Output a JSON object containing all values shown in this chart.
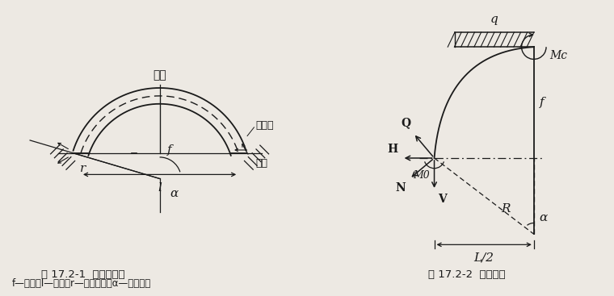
{
  "bg_color": "#ede9e3",
  "title1": "图 17.2-1  圆弧无铰拱",
  "title2": "图 17.2-2  拱身内力",
  "subtitle": "f—矢高；l—跨度；r—圆弧半径；α—半弧心角",
  "lc": "#1a1a1a"
}
